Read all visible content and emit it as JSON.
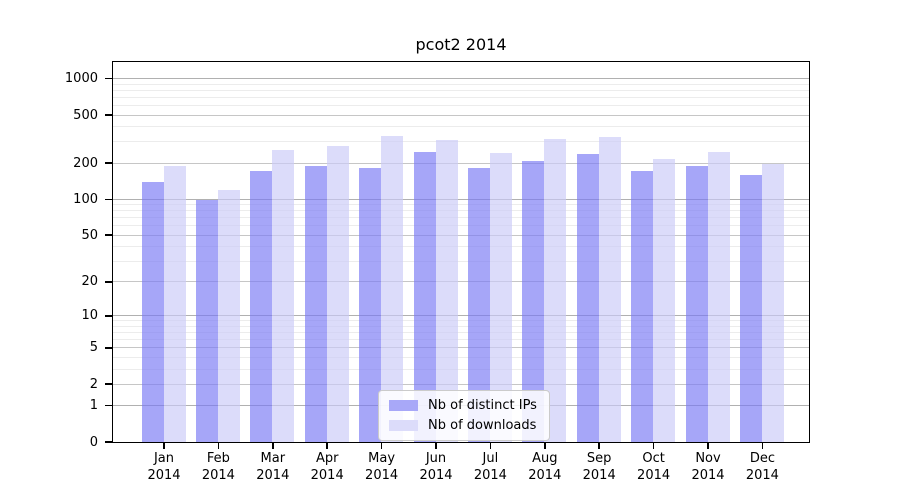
{
  "title": "pcot2 2014",
  "legend": {
    "items": [
      {
        "label": "Nb of distinct IPs",
        "color": "#a8a8f8"
      },
      {
        "label": "Nb of downloads",
        "color": "#dcdcfa"
      }
    ]
  },
  "chart_data": {
    "type": "bar",
    "title": "pcot2 2014",
    "categories": [
      "Jan 2014",
      "Feb 2014",
      "Mar 2014",
      "Apr 2014",
      "May 2014",
      "Jun 2014",
      "Jul 2014",
      "Aug 2014",
      "Sep 2014",
      "Oct 2014",
      "Nov 2014",
      "Dec 2014"
    ],
    "series": [
      {
        "name": "Nb of distinct IPs",
        "fill": "rgba(120,120,245,0.66)",
        "swatch": "#a8a8f8",
        "values": [
          140,
          100,
          175,
          190,
          185,
          250,
          185,
          210,
          240,
          175,
          190,
          160
        ]
      },
      {
        "name": "Nb of downloads",
        "fill": "rgba(202,202,247,0.66)",
        "swatch": "#dcdcfa",
        "values": [
          190,
          120,
          260,
          280,
          340,
          315,
          245,
          320,
          330,
          220,
          250,
          200
        ]
      }
    ],
    "y_scale": "log1p",
    "y_ticks": [
      0,
      1,
      2,
      5,
      10,
      20,
      50,
      100,
      200,
      500,
      1000
    ],
    "y_minor_ticks": [
      3,
      4,
      6,
      7,
      8,
      9,
      30,
      40,
      60,
      70,
      80,
      90,
      300,
      400,
      600,
      700,
      800,
      900
    ],
    "ylim": [
      0,
      1375
    ],
    "grid": true,
    "legend_position": "lower center"
  }
}
